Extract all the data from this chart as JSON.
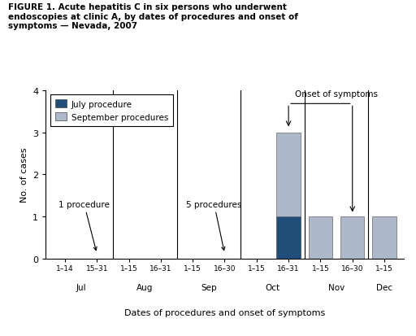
{
  "title": "FIGURE 1. Acute hepatitis C in six persons who underwent\nendoscopies at clinic A, by dates of procedures and onset of\nsymptoms — Nevada, 2007",
  "xlabel": "Dates of procedures and onset of symptoms",
  "ylabel": "No. of cases",
  "ylim": [
    0,
    4
  ],
  "yticks": [
    0,
    1,
    2,
    3,
    4
  ],
  "bar_labels": [
    "1–14",
    "15–31",
    "1–15",
    "16–31",
    "1–15",
    "16–30",
    "1–15",
    "16–31",
    "1–15",
    "16–30",
    "1–15"
  ],
  "month_labels": [
    "Jul",
    "Aug",
    "Sep",
    "Oct",
    "Nov",
    "Dec"
  ],
  "month_centers": [
    0.5,
    2.5,
    4.5,
    6.5,
    8.5,
    10.0
  ],
  "month_boundaries": [
    1.5,
    3.5,
    5.5,
    7.5,
    9.5
  ],
  "heights_light": [
    0,
    0,
    0,
    0,
    0,
    0,
    0,
    3,
    1,
    1,
    1
  ],
  "heights_dark": [
    0,
    0,
    0,
    0,
    0,
    0,
    0,
    1,
    0,
    0,
    0
  ],
  "dark_blue": "#1f4e79",
  "light_blue": "#adb9ca",
  "background_color": "#ffffff",
  "bar_width": 0.75
}
